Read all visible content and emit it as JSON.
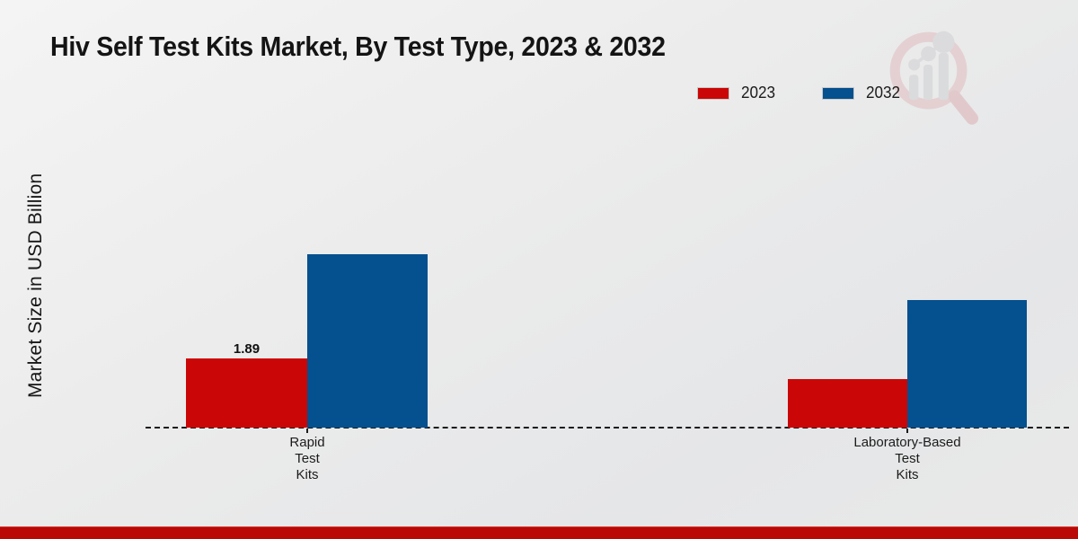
{
  "chart_data": {
    "type": "bar",
    "title": "Hiv Self Test Kits Market, By Test Type, 2023 & 2032",
    "ylabel": "Market Size in USD Billion",
    "xlabel": "",
    "categories": [
      "Rapid Test Kits",
      "Laboratory-Based Test Kits"
    ],
    "x_tick_labels": [
      "Rapid\nTest\nKits",
      "Laboratory-Based\nTest\nKits"
    ],
    "series": [
      {
        "name": "2023",
        "color": "#cb0606",
        "values": [
          1.89,
          1.32
        ]
      },
      {
        "name": "2032",
        "color": "#05508e",
        "values": [
          4.75,
          3.5
        ]
      }
    ],
    "bar_labels": [
      {
        "series": "2023",
        "category": "Rapid Test Kits",
        "text": "1.89"
      }
    ],
    "ylim": [
      0,
      5.2
    ],
    "grid": false,
    "legend_position": "top-right",
    "baseline_style": "dashed"
  },
  "page": {
    "accent_bar_color": "#b90806",
    "watermark_icon": "market-research-future-magnifier-chart-logo"
  }
}
